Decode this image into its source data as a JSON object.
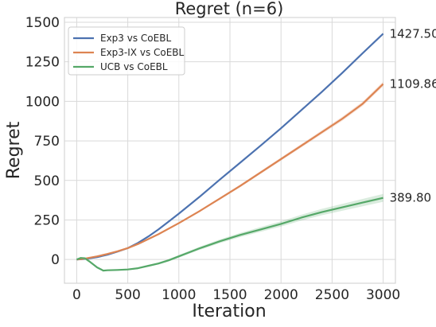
{
  "chart_data": {
    "type": "line",
    "title": "Regret (n=6)",
    "xlabel": "Iteration",
    "ylabel": "Regret",
    "xlim": [
      -120,
      3120
    ],
    "ylim": [
      -150,
      1530
    ],
    "xticks": [
      0,
      500,
      1000,
      1500,
      2000,
      2500,
      3000
    ],
    "yticks": [
      0,
      250,
      500,
      750,
      1000,
      1250,
      1500
    ],
    "grid": true,
    "legend_position": "top-left",
    "series": [
      {
        "name": "Exp3 vs CoEBL",
        "color": "#4c72b0",
        "band": 8,
        "x": [
          0,
          50,
          100,
          200,
          300,
          400,
          500,
          600,
          700,
          800,
          900,
          1000,
          1200,
          1400,
          1600,
          1800,
          2000,
          2200,
          2400,
          2600,
          2800,
          3000
        ],
        "y": [
          0,
          2,
          5,
          15,
          30,
          50,
          72,
          105,
          145,
          190,
          240,
          290,
          395,
          505,
          612,
          720,
          830,
          945,
          1060,
          1180,
          1305,
          1427.5
        ]
      },
      {
        "name": "Exp3-IX vs CoEBL",
        "color": "#dd8452",
        "band": 15,
        "x": [
          0,
          50,
          100,
          200,
          300,
          400,
          500,
          600,
          800,
          1000,
          1200,
          1400,
          1600,
          1800,
          2000,
          2200,
          2400,
          2600,
          2800,
          3000
        ],
        "y": [
          0,
          3,
          8,
          20,
          35,
          52,
          72,
          98,
          160,
          230,
          305,
          385,
          465,
          550,
          635,
          720,
          805,
          890,
          985,
          1109.86
        ]
      },
      {
        "name": "UCB vs CoEBL",
        "color": "#55a868",
        "band": 25,
        "x": [
          0,
          40,
          80,
          120,
          160,
          200,
          260,
          300,
          400,
          500,
          600,
          700,
          800,
          900,
          1000,
          1100,
          1200,
          1400,
          1600,
          1800,
          2000,
          2200,
          2400,
          2600,
          2800,
          3000
        ],
        "y": [
          0,
          10,
          8,
          -10,
          -30,
          -50,
          -70,
          -68,
          -66,
          -63,
          -55,
          -40,
          -25,
          -5,
          20,
          45,
          70,
          115,
          155,
          190,
          225,
          265,
          300,
          330,
          360,
          389.8
        ]
      }
    ],
    "end_labels": [
      "1427.50",
      "1109.86",
      "389.80"
    ]
  }
}
